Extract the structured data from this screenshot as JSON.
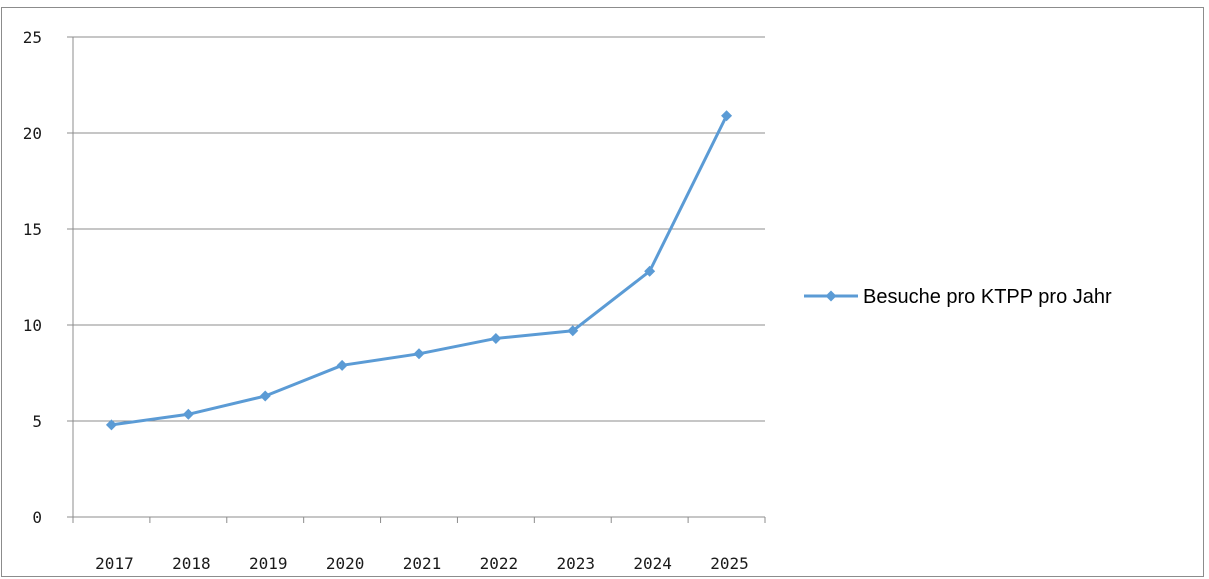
{
  "chart_data": {
    "type": "line",
    "title": "",
    "xlabel": "",
    "ylabel": "",
    "categories": [
      "2017",
      "2018",
      "2019",
      "2020",
      "2021",
      "2022",
      "2023",
      "2024",
      "2025"
    ],
    "series": [
      {
        "name": "Besuche pro KTPP pro Jahr",
        "values": [
          4.8,
          5.35,
          6.3,
          7.9,
          8.5,
          9.3,
          9.7,
          12.8,
          20.9
        ],
        "color": "#5b9bd5",
        "marker": "diamond"
      }
    ],
    "ylim": [
      0,
      25
    ],
    "yticks": [
      "0",
      "5",
      "10",
      "15",
      "20",
      "25"
    ],
    "grid": "horizontal",
    "legend": "right"
  }
}
